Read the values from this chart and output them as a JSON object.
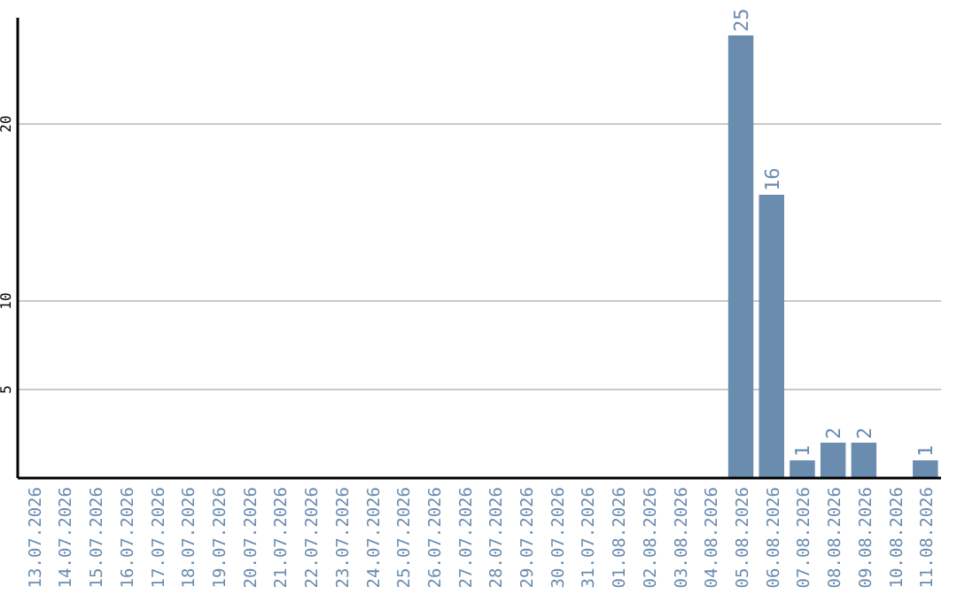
{
  "chart_data": {
    "type": "bar",
    "categories": [
      "13.07.2026",
      "14.07.2026",
      "15.07.2026",
      "16.07.2026",
      "17.07.2026",
      "18.07.2026",
      "19.07.2026",
      "20.07.2026",
      "21.07.2026",
      "22.07.2026",
      "23.07.2026",
      "24.07.2026",
      "25.07.2026",
      "26.07.2026",
      "27.07.2026",
      "28.07.2026",
      "29.07.2026",
      "30.07.2026",
      "31.07.2026",
      "01.08.2026",
      "02.08.2026",
      "03.08.2026",
      "04.08.2026",
      "05.08.2026",
      "06.08.2026",
      "07.08.2026",
      "08.08.2026",
      "09.08.2026",
      "10.08.2026",
      "11.08.2026"
    ],
    "values": [
      0,
      0,
      0,
      0,
      0,
      0,
      0,
      0,
      0,
      0,
      0,
      0,
      0,
      0,
      0,
      0,
      0,
      0,
      0,
      0,
      0,
      0,
      0,
      25,
      16,
      1,
      2,
      2,
      0,
      1
    ],
    "value_labels": [
      null,
      null,
      null,
      null,
      null,
      null,
      null,
      null,
      null,
      null,
      null,
      null,
      null,
      null,
      null,
      null,
      null,
      null,
      null,
      null,
      null,
      null,
      null,
      "25",
      "16",
      "1",
      "2",
      "2",
      null,
      "1"
    ],
    "color": "#6a8caf",
    "ylim": [
      0,
      26
    ],
    "yticks": [
      5,
      10,
      20
    ],
    "grid": "y"
  }
}
